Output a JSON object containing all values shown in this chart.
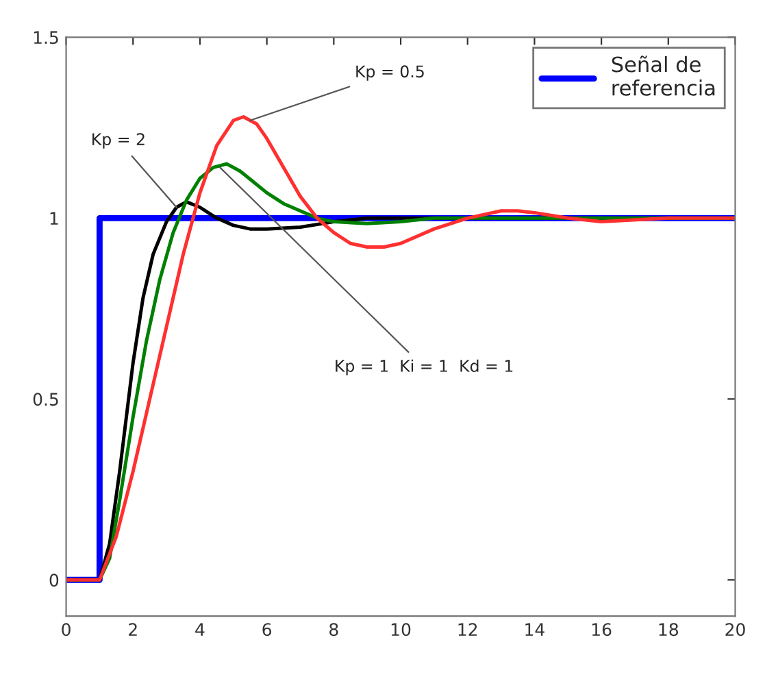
{
  "chart_data": {
    "type": "line",
    "xlim": [
      0,
      20
    ],
    "ylim": [
      -0.1,
      1.5
    ],
    "xticks": [
      0,
      2,
      4,
      6,
      8,
      10,
      12,
      14,
      16,
      18,
      20
    ],
    "yticks": [
      0,
      0.5,
      1,
      1.5
    ],
    "grid": false,
    "legend": "top right",
    "series": [
      {
        "name": "Señal de referencia",
        "color": "#0000ff",
        "x": [
          0,
          1,
          1,
          20
        ],
        "values": [
          0,
          0,
          1,
          1
        ]
      },
      {
        "color": "#000000",
        "x": [
          0,
          1,
          1.3,
          1.6,
          2,
          2.3,
          2.6,
          3,
          3.3,
          3.6,
          4,
          4.5,
          5,
          5.5,
          6,
          7,
          8,
          9,
          10,
          12,
          14,
          16,
          20
        ],
        "values": [
          0,
          0,
          0.1,
          0.3,
          0.6,
          0.78,
          0.9,
          0.99,
          1.03,
          1.045,
          1.03,
          1.0,
          0.98,
          0.97,
          0.97,
          0.975,
          0.99,
          1.0,
          1.0,
          1.0,
          1.0,
          1.0,
          1.0
        ]
      },
      {
        "color": "#008000",
        "x": [
          0,
          1,
          1.3,
          1.6,
          2,
          2.4,
          2.8,
          3.2,
          3.6,
          4,
          4.4,
          4.8,
          5.2,
          5.6,
          6,
          6.5,
          7,
          7.5,
          8,
          9,
          10,
          11,
          12,
          14,
          16,
          20
        ],
        "values": [
          0,
          0,
          0.06,
          0.22,
          0.45,
          0.66,
          0.83,
          0.96,
          1.05,
          1.11,
          1.14,
          1.15,
          1.13,
          1.1,
          1.07,
          1.04,
          1.02,
          1.0,
          0.99,
          0.985,
          0.99,
          1.0,
          1.0,
          1.0,
          1.0,
          1.0
        ]
      },
      {
        "color": "#ff3030",
        "x": [
          0,
          1,
          1.5,
          2,
          2.5,
          3,
          3.5,
          4,
          4.5,
          5,
          5.3,
          5.7,
          6,
          6.5,
          7,
          7.5,
          8,
          8.5,
          9,
          9.5,
          10,
          11,
          12,
          13,
          13.5,
          14,
          15,
          16,
          18,
          20
        ],
        "values": [
          0,
          0,
          0.12,
          0.3,
          0.5,
          0.7,
          0.9,
          1.07,
          1.2,
          1.27,
          1.28,
          1.26,
          1.22,
          1.14,
          1.06,
          1.0,
          0.96,
          0.93,
          0.92,
          0.92,
          0.93,
          0.97,
          1.0,
          1.02,
          1.02,
          1.015,
          1.0,
          0.99,
          1.0,
          1.0
        ]
      }
    ],
    "annotations": [
      {
        "text": "Kp = 0.5",
        "x": 5.5,
        "y": 1.27
      },
      {
        "text": "Kp = 2",
        "x": 3.3,
        "y": 1.03
      },
      {
        "text": "Kp = 1  Ki = 1  Kd = 1",
        "x": 4.6,
        "y": 1.14
      }
    ]
  }
}
